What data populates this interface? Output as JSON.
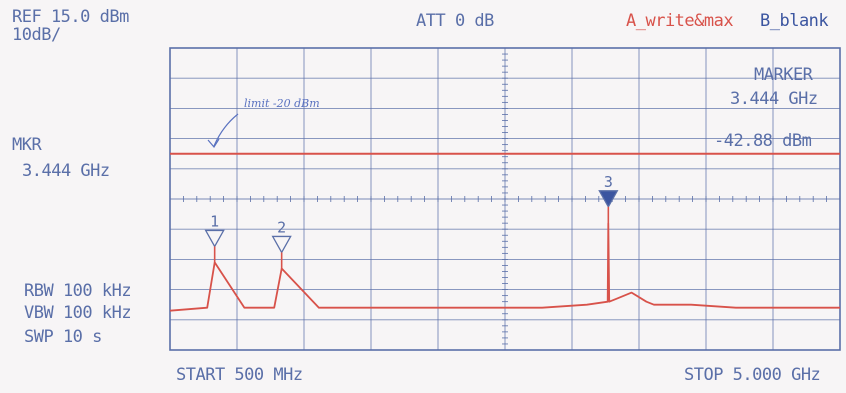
{
  "header": {
    "ref": "REF 15.0 dBm",
    "scale": "10dB/",
    "att": "ATT 0 dB",
    "trace_a": "A_write&max",
    "trace_b": "B_blank"
  },
  "left_panel": {
    "mkr_label": "MKR",
    "mkr_freq": "3.444 GHz",
    "rbw": "RBW 100 kHz",
    "vbw": "VBW 100 kHz",
    "swp": "SWP 10 s"
  },
  "marker_readout": {
    "title": "MARKER",
    "freq": "3.444 GHz",
    "level": "-42.88 dBm"
  },
  "footer": {
    "start": "START 500 MHz",
    "stop": "STOP 5.000 GHz"
  },
  "annotation": {
    "handwritten": "limit -20 dBm"
  },
  "colors": {
    "grid": "#5a6fa8",
    "trace": "#d8524a",
    "marker_filled": "#3b55a0"
  },
  "chart_data": {
    "type": "line",
    "x_unit": "MHz",
    "y_unit": "dBm",
    "xlim": [
      500,
      5000
    ],
    "ylim": [
      -85,
      15
    ],
    "grid": true,
    "limit_line": {
      "level": -20
    },
    "trace": {
      "x": [
        500,
        750,
        800,
        1000,
        1200,
        1250,
        1500,
        1800,
        2100,
        2400,
        2700,
        3000,
        3300,
        3440,
        3444,
        3450,
        3500,
        3600,
        3700,
        3750,
        3800,
        4000,
        4300,
        4600,
        5000
      ],
      "y": [
        -72,
        -71,
        -56,
        -71,
        -71,
        -58,
        -71,
        -71,
        -71,
        -71,
        -71,
        -71,
        -70,
        -69,
        -43,
        -69,
        -68,
        -66,
        -69,
        -70,
        -70,
        -70,
        -71,
        -71,
        -71
      ]
    },
    "markers": [
      {
        "label": "1",
        "freq": 800,
        "level": -56,
        "filled": false
      },
      {
        "label": "2",
        "freq": 1250,
        "level": -58,
        "filled": false
      },
      {
        "label": "3",
        "freq": 3444,
        "level": -42.88,
        "filled": true
      }
    ]
  }
}
